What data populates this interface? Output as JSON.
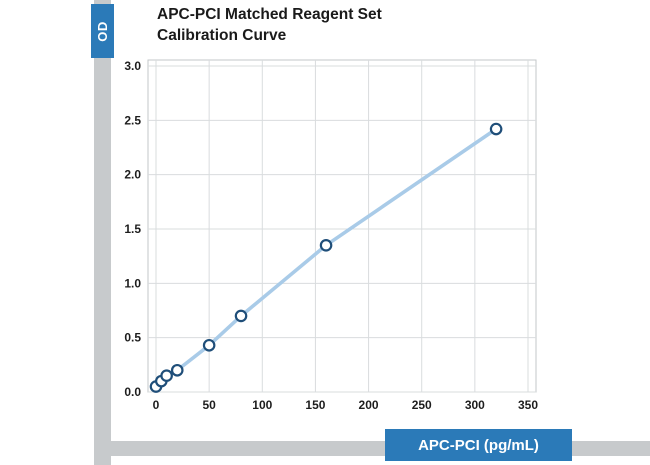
{
  "header": {
    "title_line1": "APC-PCI Matched Reagent Set",
    "title_line2": "Calibration Curve"
  },
  "badges": {
    "y_label": "OD",
    "x_label": "APC-PCI (pg/mL)",
    "badge_color": "#2b7ab8"
  },
  "chart_data": {
    "type": "line",
    "title": "APC-PCI Matched Reagent Set Calibration Curve",
    "xlabel": "APC-PCI (pg/mL)",
    "ylabel": "OD",
    "x": [
      0,
      5,
      10,
      20,
      50,
      80,
      160,
      320
    ],
    "y": [
      0.05,
      0.1,
      0.15,
      0.2,
      0.43,
      0.7,
      1.35,
      2.42
    ],
    "xlim": [
      0,
      350
    ],
    "ylim": [
      0,
      3.0
    ],
    "xticks": [
      0,
      50,
      100,
      150,
      200,
      250,
      300,
      350
    ],
    "yticks": [
      0,
      0.5,
      1.0,
      1.5,
      2.0,
      2.5,
      3.0
    ],
    "grid": true,
    "legend": "none",
    "marker": "open-circle",
    "line_color": "#a9cbe8",
    "marker_stroke_color": "#1f4e79",
    "marker_fill_color": "#ffffff",
    "grid_color": "#d9dcde",
    "plot_border_color": "#c3c7ca"
  }
}
